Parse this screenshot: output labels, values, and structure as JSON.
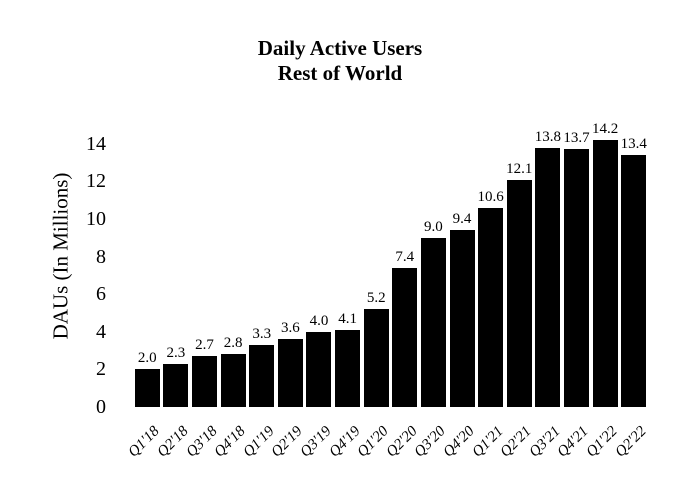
{
  "chart_data": {
    "type": "bar",
    "title": "Daily Active Users",
    "subtitle": "Rest of World",
    "ylabel": "DAUs (In Millions)",
    "xlabel": "",
    "categories": [
      "Q1'18",
      "Q2'18",
      "Q3'18",
      "Q4'18",
      "Q1'19",
      "Q2'19",
      "Q3'19",
      "Q4'19",
      "Q1'20",
      "Q2'20",
      "Q3'20",
      "Q4'20",
      "Q1'21",
      "Q2'21",
      "Q3'21",
      "Q4'21",
      "Q1'22",
      "Q2'22"
    ],
    "values": [
      2.0,
      2.3,
      2.7,
      2.8,
      3.3,
      3.6,
      4.0,
      4.1,
      5.2,
      7.4,
      9.0,
      9.4,
      10.6,
      12.1,
      13.8,
      13.7,
      14.2,
      13.4
    ],
    "value_labels": [
      "2.0",
      "2.3",
      "2.7",
      "2.8",
      "3.3",
      "3.6",
      "4.0",
      "4.1",
      "5.2",
      "7.4",
      "9.0",
      "9.4",
      "10.6",
      "12.1",
      "13.8",
      "13.7",
      "14.2",
      "13.4"
    ],
    "yticks": [
      0,
      2,
      4,
      6,
      8,
      10,
      12,
      14
    ],
    "ylim": [
      0,
      14
    ],
    "grid": "off",
    "legend": "none",
    "bar_color": "#000000",
    "background_color": "#ffffff",
    "text_color": "#000000"
  }
}
